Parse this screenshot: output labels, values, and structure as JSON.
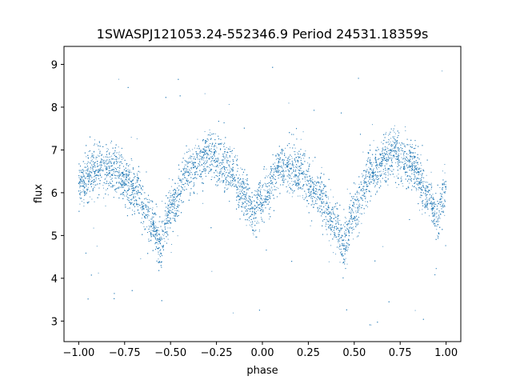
{
  "chart_data": {
    "type": "scatter",
    "title": "1SWASPJ121053.24-552346.9 Period 24531.18359s",
    "xlabel": "phase",
    "ylabel": "flux",
    "xlim": [
      -1.08,
      1.08
    ],
    "ylim": [
      2.52,
      9.42
    ],
    "grid": false,
    "legend": "none",
    "marker_color": "#1f77b4",
    "x_ticks": [
      {
        "value": -1.0,
        "label": "−1.00"
      },
      {
        "value": -0.75,
        "label": "−0.75"
      },
      {
        "value": -0.5,
        "label": "−0.50"
      },
      {
        "value": -0.25,
        "label": "−0.25"
      },
      {
        "value": 0.0,
        "label": "0.00"
      },
      {
        "value": 0.25,
        "label": "0.25"
      },
      {
        "value": 0.5,
        "label": "0.50"
      },
      {
        "value": 0.75,
        "label": "0.75"
      },
      {
        "value": 1.0,
        "label": "1.00"
      }
    ],
    "y_ticks": [
      {
        "value": 3,
        "label": "3"
      },
      {
        "value": 4,
        "label": "4"
      },
      {
        "value": 5,
        "label": "5"
      },
      {
        "value": 6,
        "label": "6"
      },
      {
        "value": 7,
        "label": "7"
      },
      {
        "value": 8,
        "label": "8"
      },
      {
        "value": 9,
        "label": "9"
      }
    ],
    "trend": {
      "description_points_phase": [
        -1.0,
        -0.9,
        -0.8,
        -0.7,
        -0.6,
        -0.56,
        -0.5,
        -0.4,
        -0.3,
        -0.2,
        -0.1,
        -0.05,
        0.0,
        0.1,
        0.2,
        0.3,
        0.4,
        0.44,
        0.5,
        0.6,
        0.7,
        0.8,
        0.9,
        0.95,
        1.0
      ],
      "flux": [
        6.2,
        6.6,
        6.5,
        6.1,
        5.3,
        4.8,
        5.6,
        6.5,
        6.85,
        6.6,
        6.0,
        5.5,
        5.9,
        6.55,
        6.5,
        6.0,
        5.3,
        4.75,
        5.6,
        6.5,
        6.9,
        6.7,
        6.0,
        5.4,
        6.1
      ]
    },
    "scatter_sigma": 0.28,
    "n_points": 9000
  }
}
